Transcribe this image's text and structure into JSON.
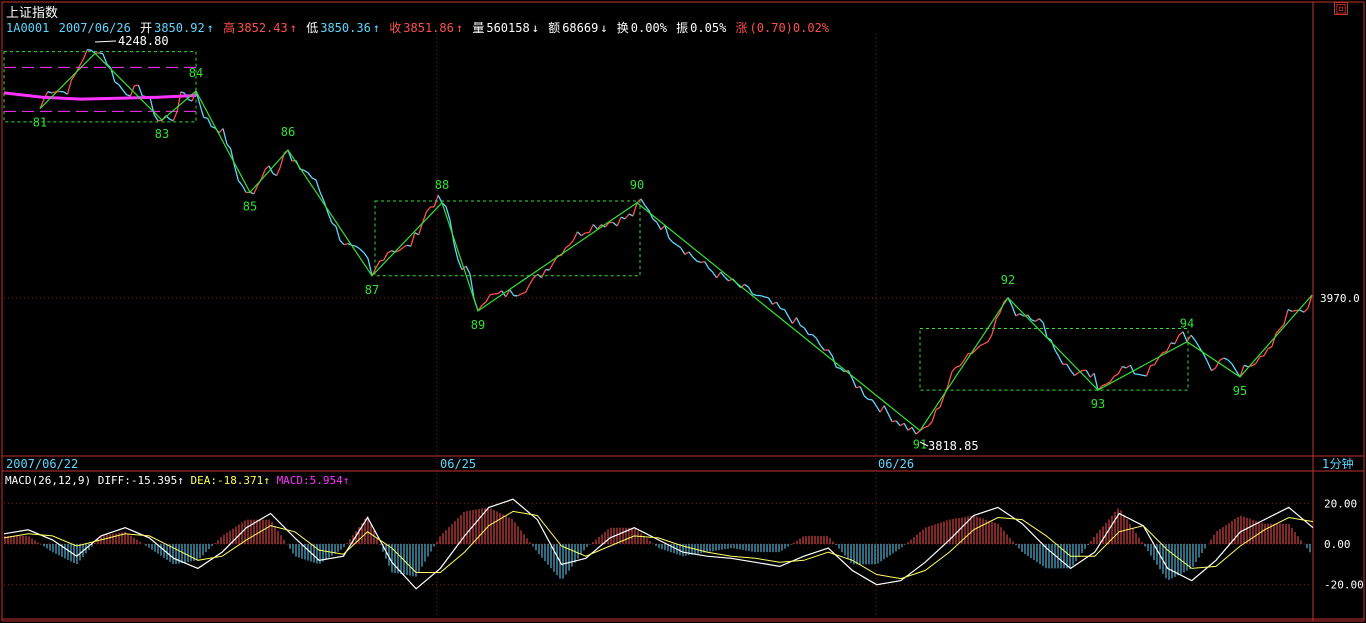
{
  "header": {
    "title": "上证指数",
    "code": "1A0001",
    "date": "2007/06/26",
    "open_label": "开",
    "open": "3850.92",
    "high_label": "高",
    "high": "3852.43",
    "low_label": "低",
    "low": "3850.36",
    "close_label": "收",
    "close": "3851.86",
    "volume_label": "量",
    "volume": "560158",
    "amount_label": "额",
    "amount": "68669",
    "turnover_label": "换",
    "turnover": "0.00%",
    "amplitude_label": "振",
    "amplitude": "0.05%",
    "change_label": "涨",
    "change": "(0.70)0.02%",
    "arrow_up": "↑",
    "arrow_down": "↓",
    "corner_icon": "window-restore-icon"
  },
  "colors": {
    "background": "#000000",
    "frame": "#c03030",
    "grid": "#8b1a1a",
    "price_up": "#ff5050",
    "price_down": "#5fd7ff",
    "wave": "#33e033",
    "ma": "#ff33ff",
    "label_cyan": "#5fd7ff",
    "label_red": "#ff5050",
    "label_magenta": "#ff33ff",
    "label_white": "#ffffff",
    "label_yellow": "#ffff55",
    "diff_line": "#ffffff",
    "dea_line": "#ffff66"
  },
  "macd_header": {
    "name": "MACD(26,12,9)",
    "diff": "DIFF:-15.395",
    "dea": "DEA:-18.371",
    "macd": "MACD:5.954",
    "arrow_up": "↑"
  },
  "chart_data": [
    {
      "type": "line",
      "panel": "price",
      "x_tick_labels": [
        "2007/06/22",
        "06/25",
        "06/26"
      ],
      "period_label": "1分钟",
      "y_tick_labels": [
        "3970.0"
      ],
      "annotations": {
        "high_marker": "4248.80",
        "low_marker": "3818.85"
      },
      "wave_points": [
        {
          "label": "81",
          "t": 40,
          "y": 4185
        },
        {
          "label": "",
          "t": 95,
          "y": 4248
        },
        {
          "label": "83",
          "t": 162,
          "y": 4172
        },
        {
          "label": "84",
          "t": 196,
          "y": 4205
        },
        {
          "label": "85",
          "t": 250,
          "y": 4090
        },
        {
          "label": "86",
          "t": 288,
          "y": 4138
        },
        {
          "label": "87",
          "t": 372,
          "y": 3995
        },
        {
          "label": "88",
          "t": 442,
          "y": 4078
        },
        {
          "label": "89",
          "t": 478,
          "y": 3955
        },
        {
          "label": "90",
          "t": 637,
          "y": 4078
        },
        {
          "label": "91",
          "t": 920,
          "y": 3818.85
        },
        {
          "label": "92",
          "t": 1008,
          "y": 3970
        },
        {
          "label": "93",
          "t": 1098,
          "y": 3865
        },
        {
          "label": "94",
          "t": 1187,
          "y": 3920
        },
        {
          "label": "95",
          "t": 1240,
          "y": 3880
        },
        {
          "label": "",
          "t": 1312,
          "y": 3973
        }
      ],
      "consolidation_boxes": [
        {
          "t0": 4,
          "t1": 196,
          "y_low": 4170,
          "y_high": 4250
        },
        {
          "t0": 375,
          "t1": 640,
          "y_low": 3995,
          "y_high": 4080
        },
        {
          "t0": 920,
          "t1": 1188,
          "y_low": 3865,
          "y_high": 3935
        }
      ],
      "moving_average": {
        "t0": 4,
        "t1": 196,
        "y_values": [
          4203,
          4198,
          4196,
          4197,
          4198,
          4200
        ]
      },
      "ylim": [
        3790,
        4270
      ],
      "xlim": [
        4,
        1313
      ]
    },
    {
      "type": "bar",
      "panel": "macd",
      "y_tick_labels": [
        "20.00",
        "0.00",
        "-20.00"
      ],
      "ylim": [
        -28,
        28
      ],
      "series": [
        {
          "name": "DIFF",
          "values": [
            5,
            7,
            2,
            -6,
            4,
            8,
            3,
            -7,
            -12,
            -4,
            8,
            15,
            3,
            -8,
            -6,
            13,
            -9,
            -22,
            -12,
            4,
            18,
            22,
            12,
            -10,
            -7,
            3,
            8,
            2,
            -4,
            -6,
            -7,
            -9,
            -11,
            -6,
            -2,
            -13,
            -20,
            -18,
            -9,
            2,
            14,
            18,
            10,
            -2,
            -12,
            -4,
            15,
            9,
            -12,
            -18,
            -8,
            6,
            12,
            18,
            8
          ]
        },
        {
          "name": "DEA",
          "values": [
            3,
            5,
            4,
            -1,
            2,
            5,
            4,
            -2,
            -8,
            -6,
            2,
            9,
            6,
            -3,
            -5,
            6,
            -2,
            -14,
            -14,
            -4,
            9,
            16,
            14,
            -1,
            -6,
            -1,
            4,
            3,
            -1,
            -4,
            -6,
            -7,
            -9,
            -8,
            -4,
            -8,
            -15,
            -17,
            -13,
            -4,
            7,
            13,
            12,
            4,
            -6,
            -6,
            6,
            9,
            -3,
            -12,
            -11,
            -1,
            7,
            13,
            11
          ]
        }
      ]
    }
  ]
}
